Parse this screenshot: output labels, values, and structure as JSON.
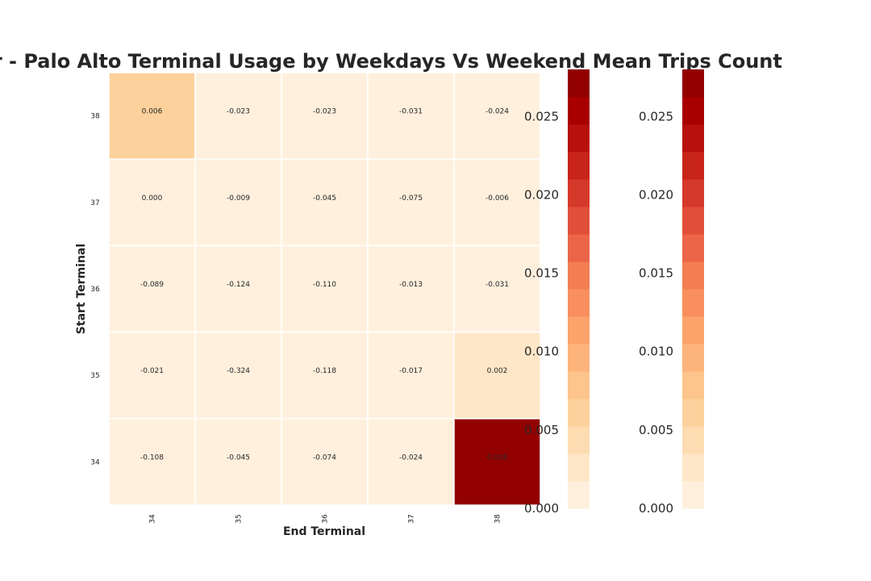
{
  "chart_data": {
    "type": "heatmap",
    "title": "Summer - Palo Alto Terminal Usage by Weekdays Vs Weekend Mean Trips Count",
    "xlabel": "End Terminal",
    "ylabel": "Start Terminal",
    "x_categories": [
      "34",
      "35",
      "36",
      "37",
      "38"
    ],
    "y_categories": [
      "38",
      "37",
      "36",
      "35",
      "34"
    ],
    "values": [
      [
        0.006,
        -0.023,
        -0.023,
        -0.031,
        -0.024
      ],
      [
        0.0,
        -0.009,
        -0.045,
        -0.075,
        -0.006
      ],
      [
        -0.089,
        -0.124,
        -0.11,
        -0.013,
        -0.031
      ],
      [
        -0.021,
        -0.324,
        -0.118,
        -0.017,
        0.002
      ],
      [
        -0.108,
        -0.045,
        -0.074,
        -0.024,
        0.028
      ]
    ],
    "cell_labels": [
      [
        "0.006",
        "-0.023",
        "-0.023",
        "-0.031",
        "-0.024"
      ],
      [
        "0.000",
        "-0.009",
        "-0.045",
        "-0.075",
        "-0.006"
      ],
      [
        "-0.089",
        "-0.124",
        "-0.110",
        "-0.013",
        "-0.031"
      ],
      [
        "-0.021",
        "-0.324",
        "-0.118",
        "-0.017",
        "0.002"
      ],
      [
        "-0.108",
        "-0.045",
        "-0.074",
        "-0.024",
        "0.028"
      ]
    ],
    "colorscale": "OrRd",
    "vmin": 0.0,
    "vmax": 0.028,
    "colorbars": [
      {
        "ticks": [
          "0.000",
          "0.005",
          "0.010",
          "0.015",
          "0.020",
          "0.025"
        ],
        "tick_values": [
          0.0,
          0.005,
          0.01,
          0.015,
          0.02,
          0.025
        ]
      },
      {
        "ticks": [
          "0.000",
          "0.005",
          "0.010",
          "0.015",
          "0.020",
          "0.025"
        ],
        "tick_values": [
          0.0,
          0.005,
          0.01,
          0.015,
          0.02,
          0.025
        ]
      }
    ],
    "colors": {
      "palette": [
        "#fff0dd",
        "#fee7c8",
        "#fddcb1",
        "#fdd19b",
        "#fdc48b",
        "#fcb47b",
        "#fca36c",
        "#f98f5e",
        "#f47d52",
        "#ec6548",
        "#e14f3a",
        "#d5392a",
        "#c82419",
        "#b8100c",
        "#a80000",
        "#930000"
      ]
    }
  }
}
